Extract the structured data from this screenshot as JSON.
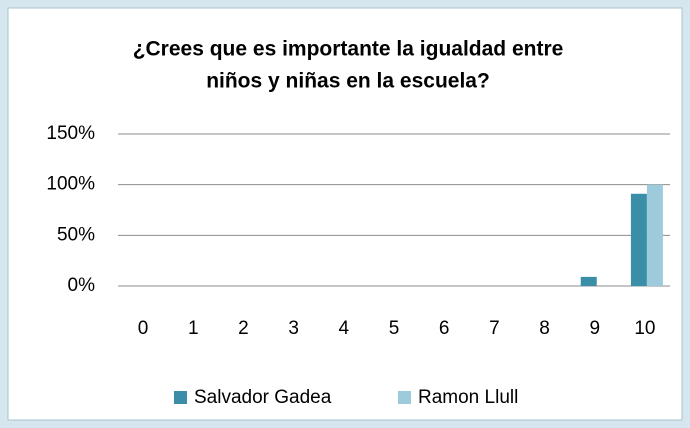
{
  "chart_data": {
    "type": "bar",
    "title": [
      "¿Crees que es importante la igualdad entre",
      "niños y niñas en la escuela?"
    ],
    "categories": [
      "0",
      "1",
      "2",
      "3",
      "4",
      "5",
      "6",
      "7",
      "8",
      "9",
      "10"
    ],
    "series": [
      {
        "name": "Salvador Gadea",
        "color": "#3b8ea7",
        "values": [
          0,
          0,
          0,
          0,
          0,
          0,
          0,
          0,
          0,
          9,
          91
        ]
      },
      {
        "name": "Ramon Llull",
        "color": "#9dcbdc",
        "values": [
          0,
          0,
          0,
          0,
          0,
          0,
          0,
          0,
          0,
          0,
          100
        ]
      }
    ],
    "ylim": [
      0,
      150
    ],
    "yticks": [
      {
        "value": 0,
        "label": "0%"
      },
      {
        "value": 50,
        "label": "50%"
      },
      {
        "value": 100,
        "label": "100%"
      },
      {
        "value": 150,
        "label": "150%"
      }
    ],
    "grid": true,
    "legend": "bottom"
  }
}
